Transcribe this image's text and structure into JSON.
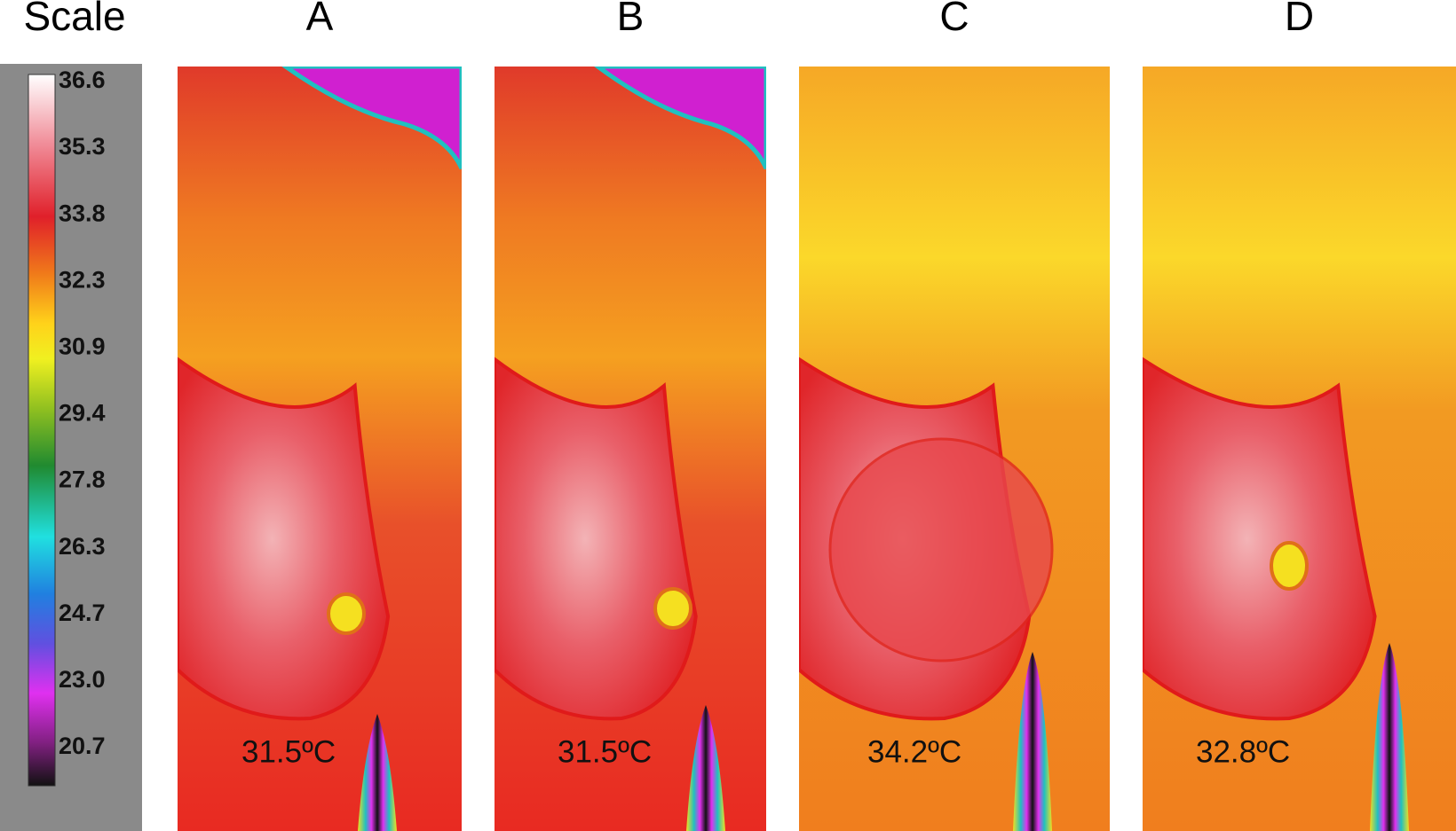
{
  "scale": {
    "title": "Scale",
    "ticks": [
      "36.6",
      "35.3",
      "33.8",
      "32.3",
      "30.9",
      "29.4",
      "27.8",
      "26.3",
      "24.7",
      "23.0",
      "20.7"
    ]
  },
  "panels": [
    {
      "label": "A",
      "temperature": "31.5ºC"
    },
    {
      "label": "B",
      "temperature": "31.5ºC"
    },
    {
      "label": "C",
      "temperature": "34.2ºC"
    },
    {
      "label": "D",
      "temperature": "32.8ºC"
    }
  ]
}
